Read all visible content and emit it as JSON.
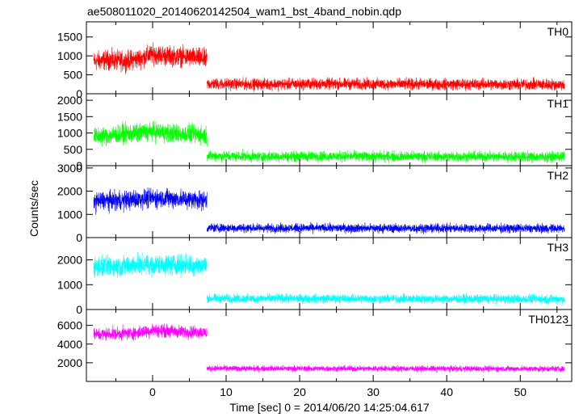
{
  "title": "ae508011020_20140620142504_wam1_bst_4band_nobin.qdp",
  "ylabel": "Counts/sec",
  "xlabel": "Time [sec] 0 = 2014/06/20 14:25:04.617",
  "chart_data": {
    "type": "line",
    "title": "ae508011020_20140620142504_wam1_bst_4band_nobin.qdp",
    "xlabel": "Time [sec] 0 = 2014/06/20 14:25:04.617",
    "ylabel": "Counts/sec",
    "xlim": [
      -9,
      57
    ],
    "x_ticks": [
      0,
      10,
      20,
      30,
      40,
      50
    ],
    "x_tick_labels": [
      "0",
      "10",
      "20",
      "30",
      "40",
      "50"
    ],
    "break_time": 7.4,
    "panels": [
      {
        "name": "TH0",
        "color": "#ff0000",
        "ylim": [
          0,
          1900
        ],
        "y_ticks": [
          0,
          500,
          1000,
          1500
        ],
        "y_tick_labels": [
          "0",
          "500",
          "1000",
          "1500"
        ],
        "segments": [
          {
            "x": [
              -8,
              -6,
              -4,
              -2,
              0,
              2,
              4,
              6,
              7.4
            ],
            "mean": [
              850,
              900,
              860,
              920,
              1050,
              1000,
              980,
              950,
              900
            ],
            "spread": 380
          },
          {
            "x": [
              7.4,
              15,
              25,
              35,
              45,
              56
            ],
            "mean": [
              260,
              250,
              260,
              250,
              250,
              240
            ],
            "spread": 220
          }
        ]
      },
      {
        "name": "TH1",
        "color": "#00ff00",
        "ylim": [
          0,
          2200
        ],
        "y_ticks": [
          0,
          500,
          1000,
          1500,
          2000
        ],
        "y_tick_labels": [
          "0",
          "500",
          "1000",
          "1500",
          "2000"
        ],
        "segments": [
          {
            "x": [
              -8,
              -6,
              -4,
              -2,
              0,
              2,
              4,
              6,
              7.4
            ],
            "mean": [
              900,
              920,
              980,
              1000,
              1050,
              1000,
              980,
              950,
              930
            ],
            "spread": 420
          },
          {
            "x": [
              7.4,
              15,
              25,
              35,
              45,
              56
            ],
            "mean": [
              300,
              280,
              290,
              280,
              280,
              270
            ],
            "spread": 230
          }
        ]
      },
      {
        "name": "TH2",
        "color": "#0000ee",
        "ylim": [
          0,
          3100
        ],
        "y_ticks": [
          0,
          1000,
          2000,
          3000
        ],
        "y_tick_labels": [
          "0",
          "1000",
          "2000",
          "3000"
        ],
        "segments": [
          {
            "x": [
              -8,
              -6,
              -4,
              -2,
              0,
              2,
              4,
              6,
              7.4
            ],
            "mean": [
              1550,
              1600,
              1600,
              1650,
              1700,
              1700,
              1650,
              1650,
              1600
            ],
            "spread": 600
          },
          {
            "x": [
              7.4,
              15,
              25,
              35,
              45,
              56
            ],
            "mean": [
              420,
              410,
              410,
              400,
              400,
              390
            ],
            "spread": 280
          }
        ]
      },
      {
        "name": "TH3",
        "color": "#00ffff",
        "ylim": [
          0,
          2900
        ],
        "y_ticks": [
          0,
          1000,
          2000
        ],
        "y_tick_labels": [
          "0",
          "1000",
          "2000"
        ],
        "segments": [
          {
            "x": [
              -8,
              -6,
              -4,
              -2,
              0,
              2,
              4,
              6,
              7.4
            ],
            "mean": [
              1700,
              1750,
              1750,
              1800,
              1800,
              1800,
              1800,
              1800,
              1750
            ],
            "spread": 600
          },
          {
            "x": [
              7.4,
              15,
              25,
              35,
              45,
              56
            ],
            "mean": [
              450,
              440,
              440,
              430,
              430,
              420
            ],
            "spread": 260
          }
        ]
      },
      {
        "name": "TH0123",
        "color": "#ff00ff",
        "ylim": [
          0,
          7700
        ],
        "y_ticks": [
          2000,
          4000,
          6000
        ],
        "y_tick_labels": [
          "2000",
          "4000",
          "6000"
        ],
        "segments": [
          {
            "x": [
              -8,
              -6,
              -4,
              -2,
              0,
              2,
              4,
              6,
              7.4
            ],
            "mean": [
              5000,
              5100,
              5150,
              5200,
              5500,
              5400,
              5300,
              5300,
              5200
            ],
            "spread": 1000
          },
          {
            "x": [
              7.4,
              15,
              25,
              35,
              45,
              56
            ],
            "mean": [
              1400,
              1380,
              1380,
              1370,
              1360,
              1350
            ],
            "spread": 450
          }
        ]
      }
    ]
  }
}
